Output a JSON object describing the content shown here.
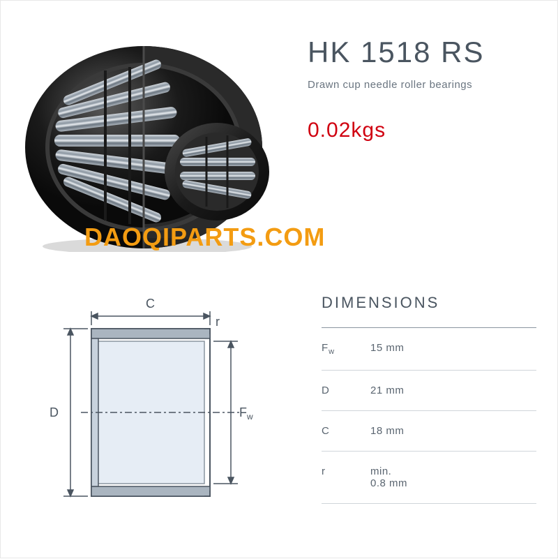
{
  "product": {
    "title": "HK 1518 RS",
    "subtitle": "Drawn cup needle roller bearings",
    "weight": "0.02kgs",
    "watermark": "DAOQIPARTS.COM"
  },
  "bearing_render": {
    "outer_color": "#1a1a1a",
    "outer_highlight": "#3a3a3a",
    "roller_color": "#7a8590",
    "roller_highlight": "#b8c0c8",
    "inner_dark": "#2a2a2a",
    "cutaway_edge": "#4a4a4a"
  },
  "dimensions": {
    "title": "DIMENSIONS",
    "rows": [
      {
        "label": "F",
        "sub": "w",
        "value": "15 mm"
      },
      {
        "label": "D",
        "sub": "",
        "value": "21 mm"
      },
      {
        "label": "C",
        "sub": "",
        "value": "18 mm"
      },
      {
        "label": "r",
        "sub": "",
        "value": "min.\n0.8 mm"
      }
    ]
  },
  "diagram": {
    "line_color": "#4a5560",
    "fill_inner": "#dce5f0",
    "fill_outer": "#5a6570",
    "labels": {
      "C": "C",
      "D": "D",
      "Fw": "F",
      "Fw_sub": "w",
      "r": "r"
    }
  },
  "colors": {
    "title_text": "#4a5560",
    "subtitle_text": "#6a7580",
    "weight_text": "#d00010",
    "watermark": "#f39c12",
    "divider_strong": "#8a95a0",
    "divider_light": "#d0d5da",
    "background": "#ffffff"
  }
}
